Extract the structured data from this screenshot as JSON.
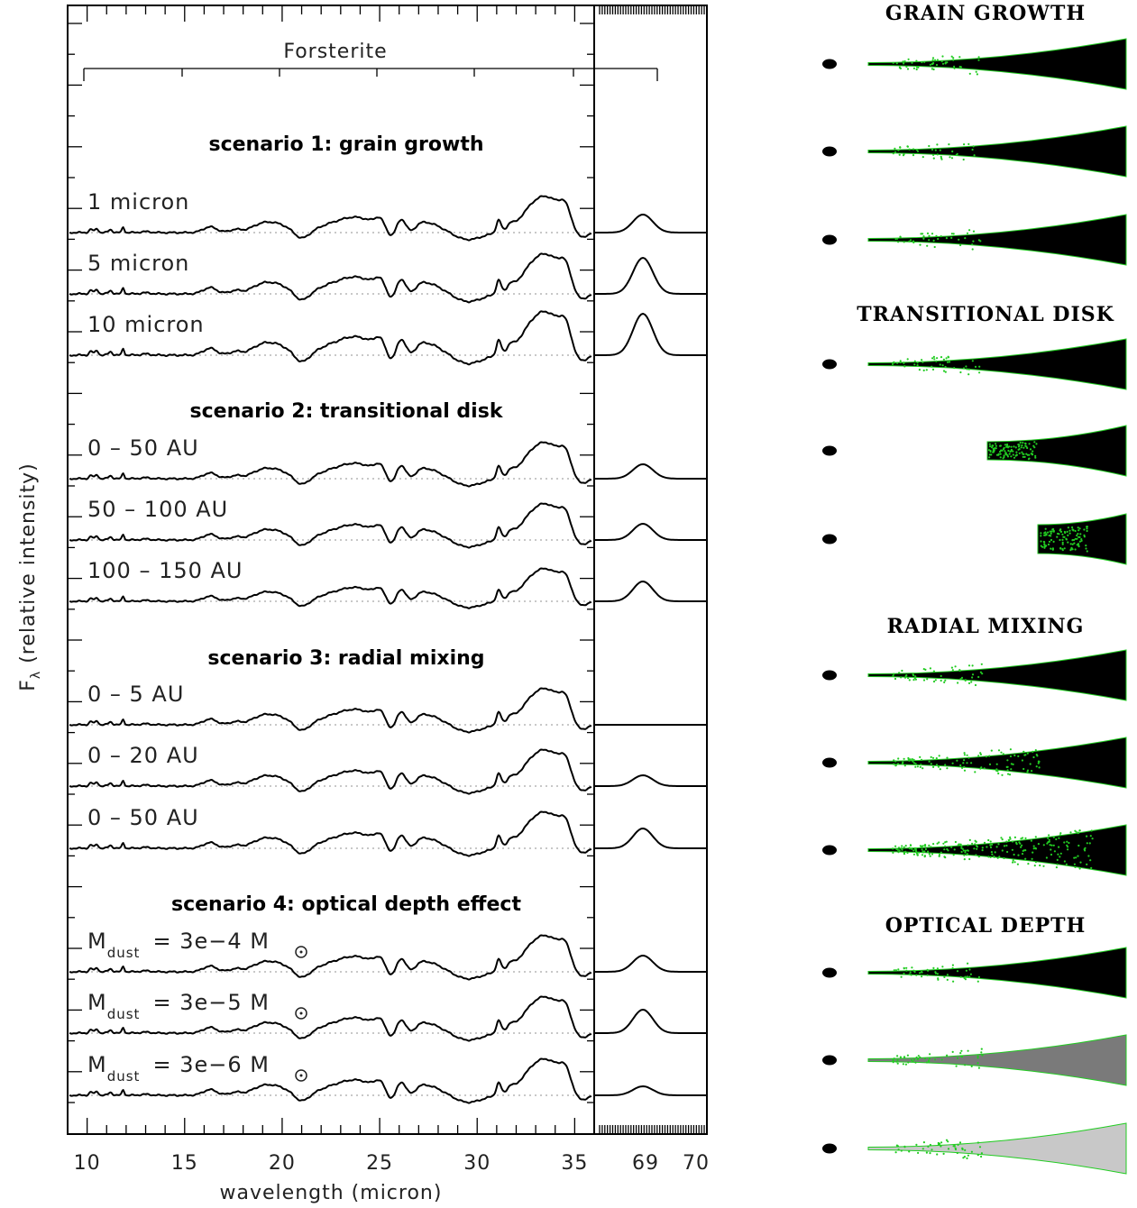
{
  "chart_data": {
    "type": "line",
    "xlabel": "wavelength (micron)",
    "ylabel": "F_λ (relative intensity)",
    "ylabel_main": "F",
    "ylabel_sub": "λ",
    "ylabel_rest": "(relative intensity)",
    "x_ticks_main": [
      "10",
      "15",
      "20",
      "25",
      "30",
      "35"
    ],
    "x_ticks_inset": [
      "69",
      "70"
    ],
    "xlim_main": [
      9,
      36
    ],
    "xlim_inset": [
      68,
      70
    ],
    "annotation_bar": "Forsterite",
    "scenarios": [
      {
        "title": "scenario 1: grain growth",
        "series": [
          {
            "name": "1 micron",
            "scale": 1.0,
            "peak69": 1.0
          },
          {
            "name": "5 micron",
            "scale": 1.1,
            "peak69": 2.0
          },
          {
            "name": "10 micron",
            "scale": 1.2,
            "peak69": 2.3
          }
        ]
      },
      {
        "title": "scenario 2: transitional disk",
        "series": [
          {
            "name": "0 – 50 AU",
            "scale": 1.0,
            "peak69": 0.8
          },
          {
            "name": "50 – 100 AU",
            "scale": 1.0,
            "peak69": 0.9
          },
          {
            "name": "100 – 150 AU",
            "scale": 0.9,
            "peak69": 1.1
          }
        ]
      },
      {
        "title": "scenario 3: radial mixing",
        "series": [
          {
            "name": "0 – 5 AU",
            "scale": 1.0,
            "peak69": 0.0
          },
          {
            "name": "0 – 20 AU",
            "scale": 1.0,
            "peak69": 0.6
          },
          {
            "name": "0 – 50 AU",
            "scale": 1.0,
            "peak69": 1.1
          }
        ]
      },
      {
        "title": "scenario 4: optical depth effect",
        "series": [
          {
            "name_main": "M",
            "name_sub": "dust",
            "name_rest": "= 3e−4 M",
            "scale": 1.0,
            "peak69": 0.9
          },
          {
            "name_main": "M",
            "name_sub": "dust",
            "name_rest": "= 3e−5 M",
            "scale": 1.0,
            "peak69": 1.3
          },
          {
            "name_main": "M",
            "name_sub": "dust",
            "name_rest": "= 3e−6 M",
            "scale": 1.0,
            "peak69": 0.5
          }
        ]
      }
    ]
  },
  "panels": {
    "titles": [
      "GRAIN GROWTH",
      "TRANSITIONAL DISK",
      "RADIAL MIXING",
      "OPTICAL DEPTH"
    ],
    "disk_fill": "#000000",
    "dust_color": "#22cc22",
    "optical_fills": [
      "#000000",
      "#7a7a7a",
      "#c8c8c8"
    ]
  }
}
